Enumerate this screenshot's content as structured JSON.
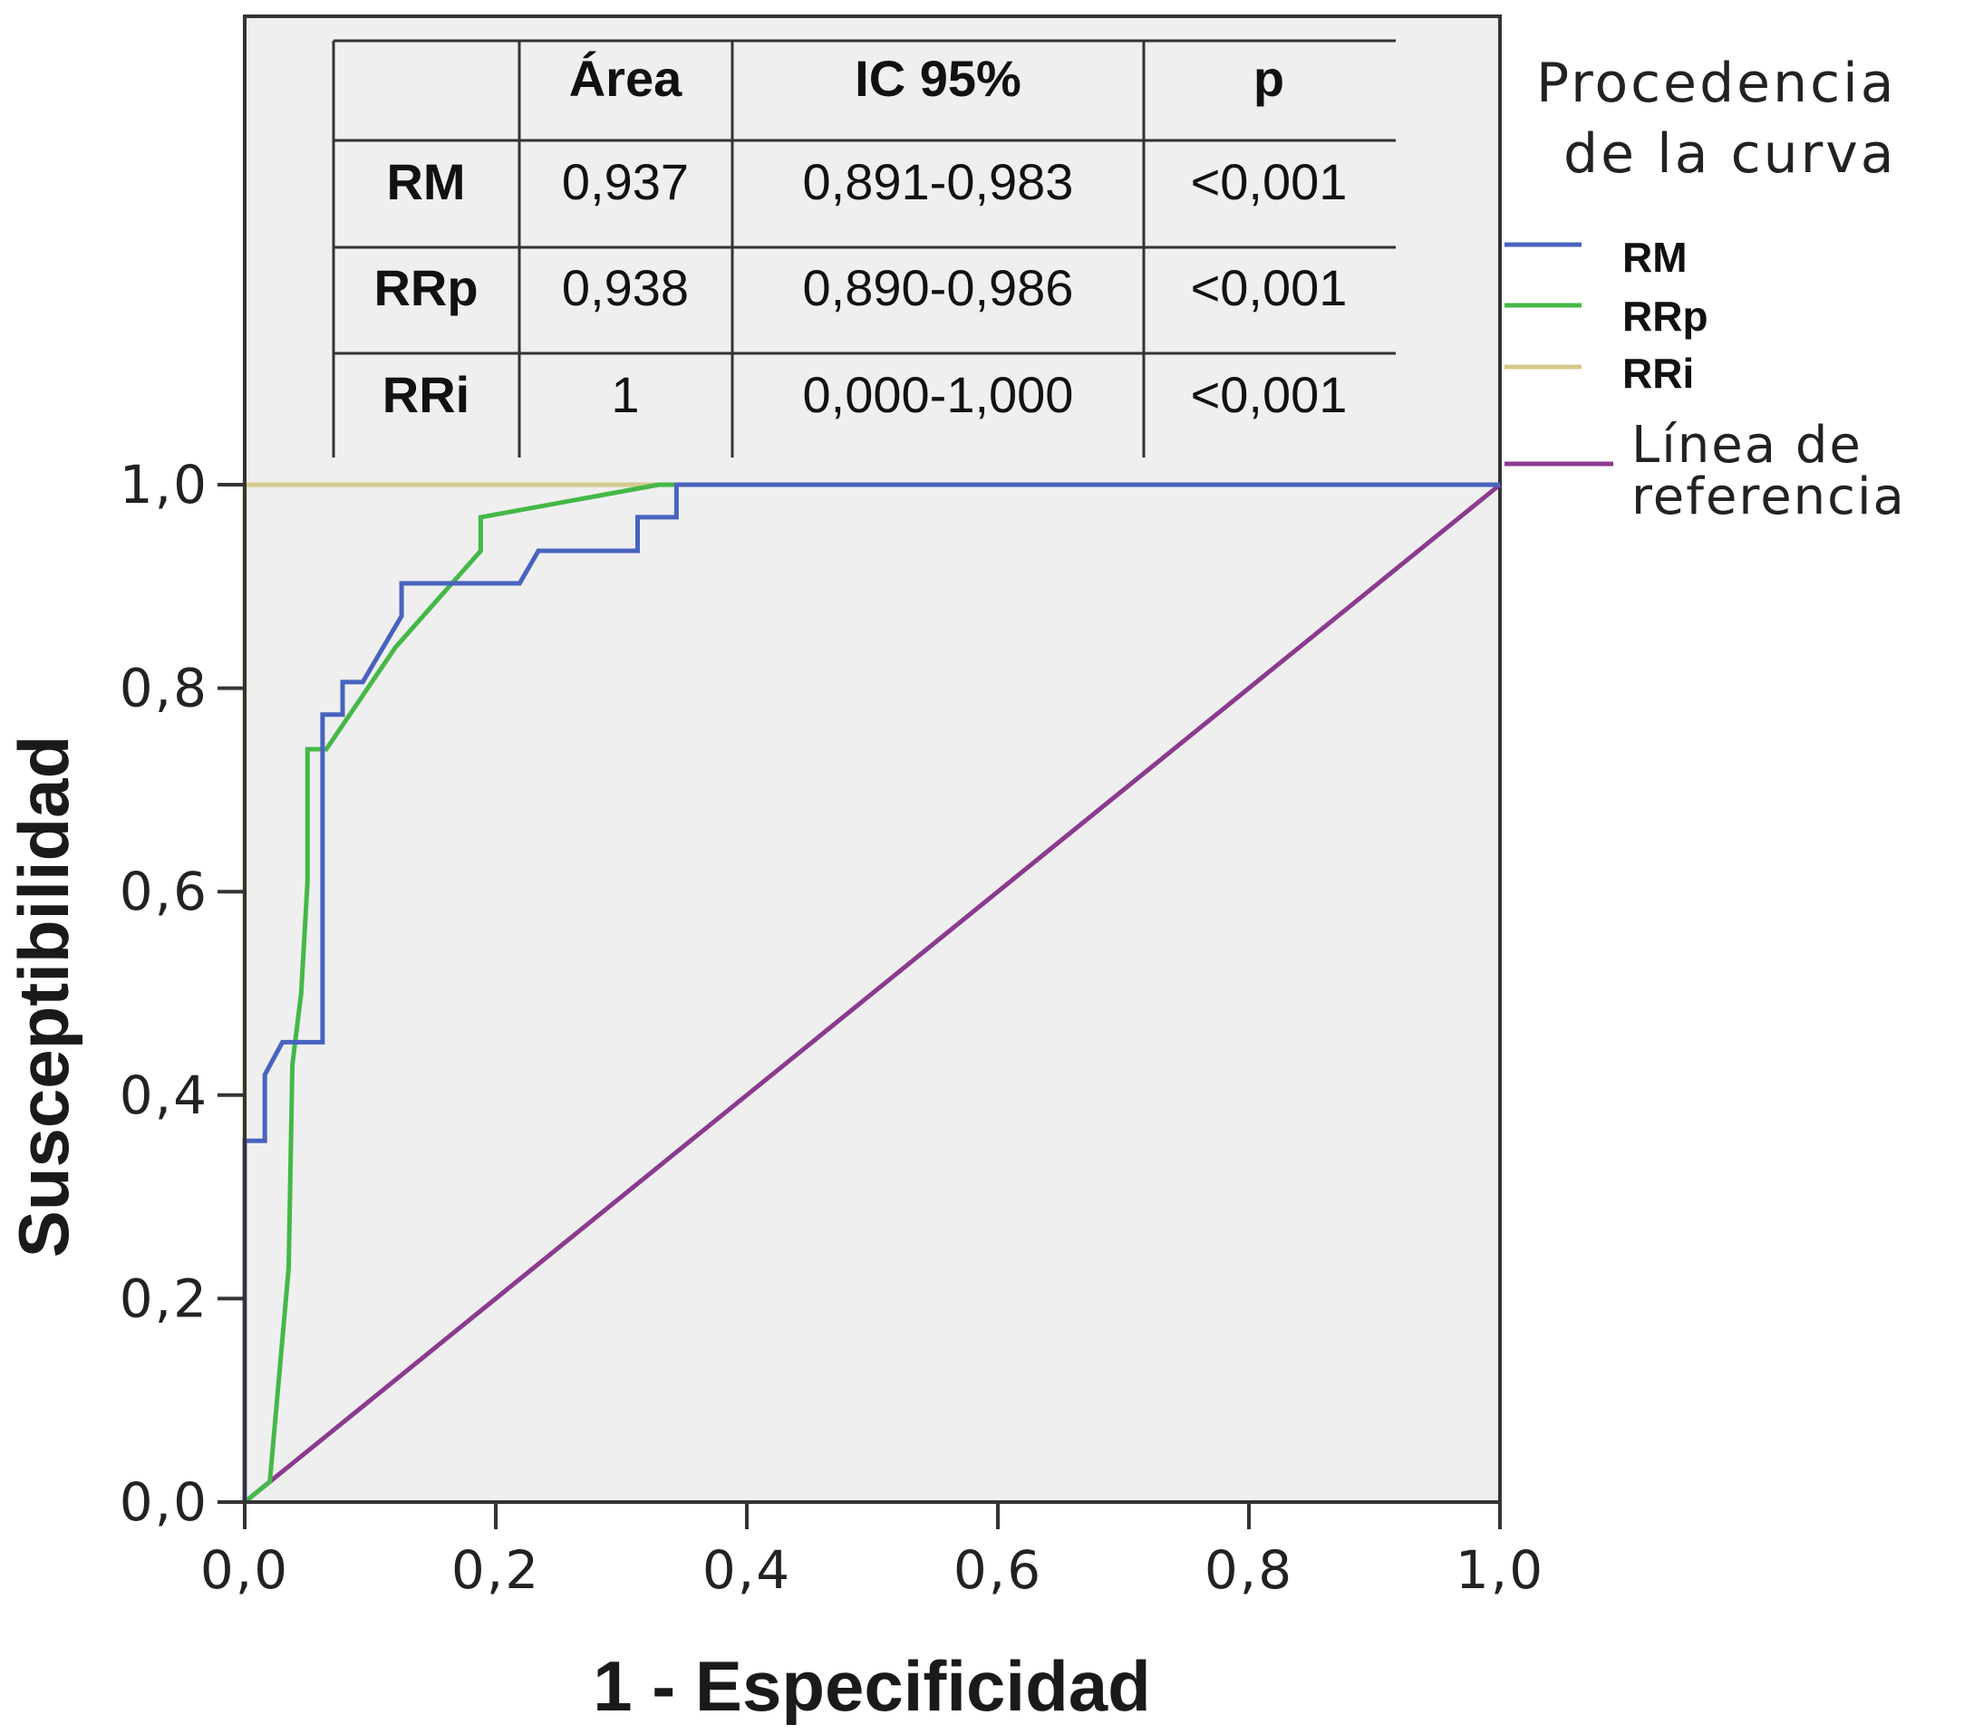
{
  "chart_data": {
    "type": "line",
    "xlabel": "1 - Especificidad",
    "ylabel": "Susceptibilidad",
    "xlim": [
      0,
      1
    ],
    "ylim": [
      0,
      1
    ],
    "x_ticks": [
      "0,0",
      "0,2",
      "0,4",
      "0,6",
      "0,8",
      "1,0"
    ],
    "y_ticks": [
      "0,0",
      "0,2",
      "0,4",
      "0,6",
      "0,8",
      "1,0"
    ],
    "grid": false,
    "legend_title": "Procedencia de la curva",
    "legend_title_lines": [
      "Procedencia",
      "de la curva"
    ],
    "legend_position": "right",
    "series": [
      {
        "name": "RM",
        "color": "#4863bf",
        "points": [
          [
            0,
            0
          ],
          [
            0,
            0.355
          ],
          [
            0.016,
            0.355
          ],
          [
            0.016,
            0.42
          ],
          [
            0.03,
            0.452
          ],
          [
            0.062,
            0.452
          ],
          [
            0.062,
            0.774
          ],
          [
            0.078,
            0.774
          ],
          [
            0.078,
            0.806
          ],
          [
            0.094,
            0.806
          ],
          [
            0.125,
            0.871
          ],
          [
            0.125,
            0.903
          ],
          [
            0.219,
            0.903
          ],
          [
            0.234,
            0.935
          ],
          [
            0.313,
            0.935
          ],
          [
            0.313,
            0.968
          ],
          [
            0.344,
            0.968
          ],
          [
            0.344,
            1.0
          ],
          [
            1,
            1
          ]
        ]
      },
      {
        "name": "RRp",
        "color": "#44b847",
        "points": [
          [
            0,
            0
          ],
          [
            0.02,
            0.02
          ],
          [
            0.035,
            0.23
          ],
          [
            0.038,
            0.43
          ],
          [
            0.045,
            0.5
          ],
          [
            0.05,
            0.61
          ],
          [
            0.05,
            0.74
          ],
          [
            0.065,
            0.74
          ],
          [
            0.12,
            0.84
          ],
          [
            0.188,
            0.935
          ],
          [
            0.188,
            0.968
          ],
          [
            0.33,
            1.0
          ],
          [
            1,
            1
          ]
        ]
      },
      {
        "name": "RRi",
        "color": "#d4c98c",
        "points": [
          [
            0,
            0
          ],
          [
            0,
            1
          ],
          [
            1,
            1
          ]
        ]
      },
      {
        "name": "Línea de referencia",
        "name_lines": [
          "Línea de",
          "referencia"
        ],
        "color": "#8b3a8f",
        "points": [
          [
            0,
            0
          ],
          [
            1,
            1
          ]
        ]
      }
    ],
    "table": {
      "headers": [
        "",
        "Área",
        "IC 95%",
        "p"
      ],
      "rows": [
        [
          "RM",
          "0,937",
          "0,891-0,983",
          "<0,001"
        ],
        [
          "RRp",
          "0,938",
          "0,890-0,986",
          "<0,001"
        ],
        [
          "RRi",
          "1",
          "0,000-1,000",
          "<0,001"
        ]
      ]
    }
  }
}
